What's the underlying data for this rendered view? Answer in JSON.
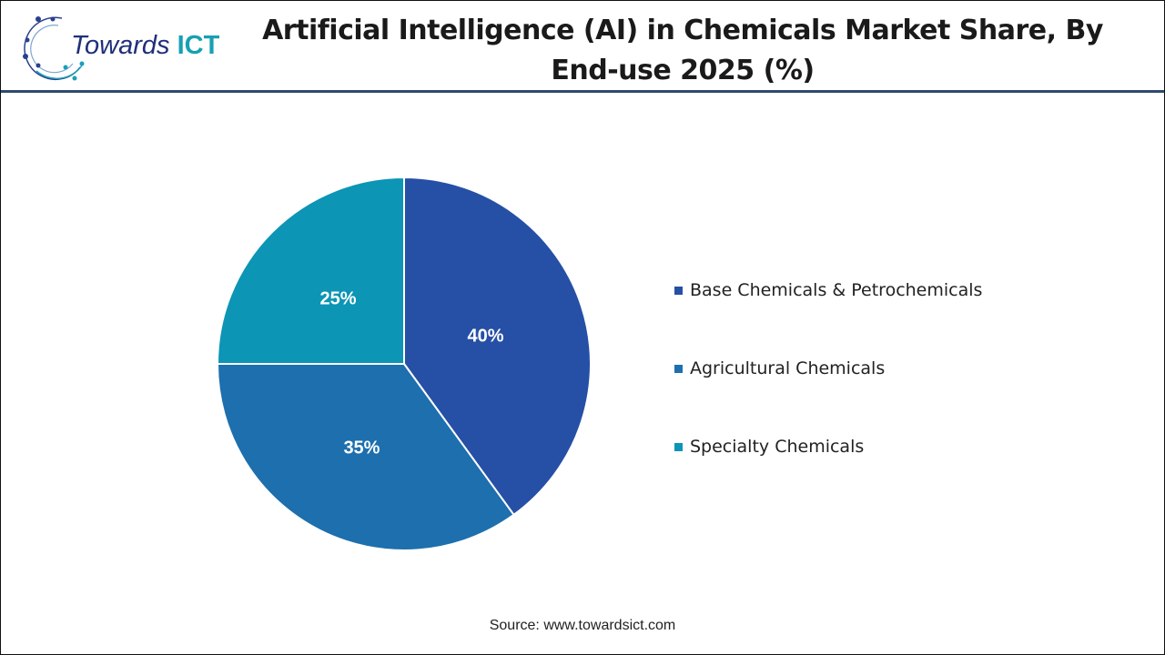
{
  "logo": {
    "text_main": "Towards",
    "text_accent": "ICT"
  },
  "chart_data": {
    "type": "pie",
    "title": "Artificial Intelligence (AI) in Chemicals Market Share, By End-use 2025 (%)",
    "categories": [
      "Base Chemicals & Petrochemicals",
      "Agricultural Chemicals",
      "Specialty Chemicals"
    ],
    "values": [
      40,
      35,
      25
    ],
    "data_labels": [
      "40%",
      "35%",
      "25%"
    ],
    "colors": [
      "#264fa6",
      "#1d6fae",
      "#0c95b5"
    ],
    "start_angle": "12 o'clock, clockwise",
    "legend_position": "right"
  },
  "source": "Source: www.towardsict.com"
}
